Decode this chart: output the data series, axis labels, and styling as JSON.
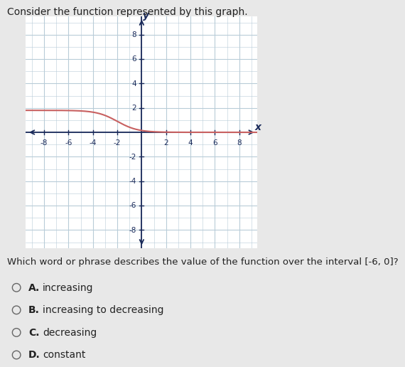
{
  "title": "Consider the function represented by this graph.",
  "question": "Which word or phrase describes the value of the function over the interval −6, 0ₓ?",
  "question_text": "Which word or phrase describes the value of the function over the interval [-6, 0]",
  "choices_letters": [
    "A.",
    "B.",
    "C.",
    "D."
  ],
  "choices_text": [
    "increasing",
    "increasing to decreasing",
    "decreasing",
    "constant"
  ],
  "bg_color": "#e8e8e8",
  "graph_bg": "#ffffff",
  "grid_color": "#b8ccd8",
  "curve_color": "#c86060",
  "axis_color": "#1a2a5a",
  "text_color": "#222222",
  "xlim": [
    -9.5,
    9.5
  ],
  "ylim": [
    -9.5,
    9.5
  ],
  "xticks": [
    -8,
    -6,
    -4,
    -2,
    2,
    4,
    6,
    8
  ],
  "yticks": [
    -8,
    -6,
    -4,
    -2,
    2,
    4,
    6,
    8
  ],
  "tick_fontsize": 7.5,
  "axis_label_fontsize": 10,
  "choice_fontsize": 10,
  "title_fontsize": 10,
  "question_fontsize": 9.5,
  "curve_shift": -2.0,
  "curve_scale": 1.8
}
